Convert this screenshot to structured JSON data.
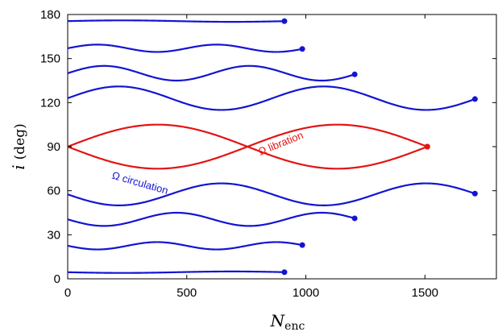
{
  "chart_data": {
    "type": "line",
    "xlabel": "N",
    "xlabel_sub": "enc",
    "ylabel": "i",
    "ylabel_unit": "(deg)",
    "xlim": [
      0,
      1800
    ],
    "ylim": [
      0,
      180
    ],
    "x_ticks": [
      0,
      500,
      1000,
      1500
    ],
    "y_ticks": [
      0,
      30,
      60,
      90,
      120,
      150,
      180
    ],
    "grid": false,
    "colors": {
      "circulation": "#1414d2",
      "libration": "#e31414"
    },
    "annotations": [
      {
        "text": "Ω circulation",
        "color": "#1414d2",
        "x": 300,
        "y": 63,
        "angle_deg": 16
      },
      {
        "text": "Ω libration",
        "color": "#e31414",
        "x": 900,
        "y": 90,
        "angle_deg": -22
      }
    ],
    "series": [
      {
        "kind": "circulation",
        "mean": 175.5,
        "amp": 0.5,
        "period": 920,
        "phase": 0,
        "x_end": 910
      },
      {
        "kind": "circulation",
        "mean": 157,
        "amp": 2.5,
        "period": 500,
        "phase": 0,
        "x_end": 985
      },
      {
        "kind": "circulation",
        "mean": 140,
        "amp": 5,
        "period": 610,
        "phase": 0,
        "x_end": 1205
      },
      {
        "kind": "circulation",
        "mean": 123,
        "amp": 8,
        "period": 860,
        "phase": 0,
        "x_end": 1710
      },
      {
        "kind": "libration",
        "mean": 90,
        "amp": 15,
        "period": 1510,
        "phase": 3.1416,
        "x_end": 1510
      },
      {
        "kind": "libration",
        "mean": 90,
        "amp": 15,
        "period": 1510,
        "phase": 0,
        "x_end": 1510
      },
      {
        "kind": "circulation",
        "mean": 57.5,
        "amp": 7.5,
        "period": 860,
        "phase": 3.1416,
        "x_end": 1710
      },
      {
        "kind": "circulation",
        "mean": 40.5,
        "amp": 4.5,
        "period": 610,
        "phase": 3.1416,
        "x_end": 1205
      },
      {
        "kind": "circulation",
        "mean": 22.5,
        "amp": 2.5,
        "period": 500,
        "phase": 3.1416,
        "x_end": 985
      },
      {
        "kind": "circulation",
        "mean": 4.5,
        "amp": 0.5,
        "period": 920,
        "phase": 3.1416,
        "x_end": 910
      }
    ]
  }
}
